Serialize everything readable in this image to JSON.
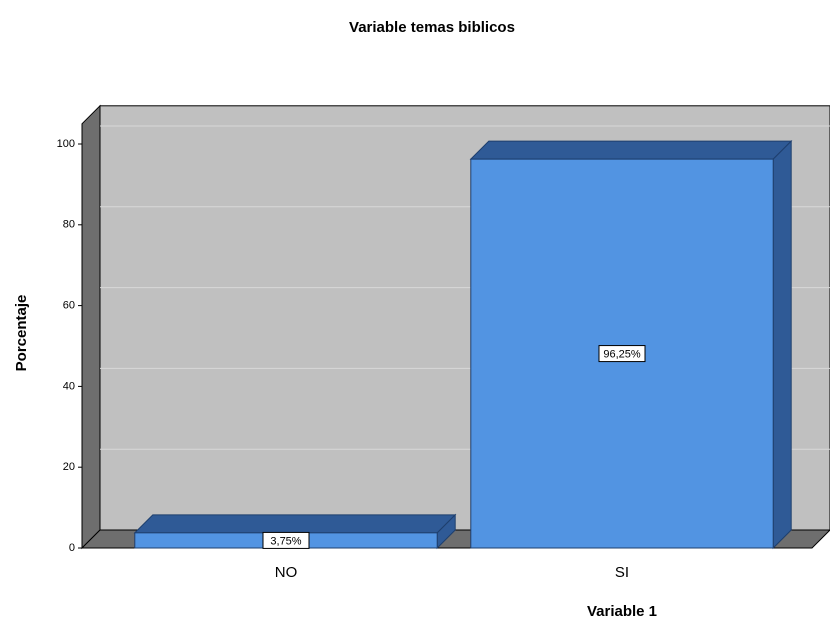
{
  "chart_data": {
    "type": "bar3d",
    "title": "Variable temas biblicos",
    "x_label": "Variable 1",
    "y_label": "Porcentaje",
    "categories": [
      "NO",
      "SI"
    ],
    "values": [
      3.75,
      96.25
    ],
    "value_labels": [
      "3,75%",
      "96,25%"
    ],
    "color": "#5294e2",
    "ylim": [
      0,
      105
    ],
    "yticks": [
      0,
      20,
      40,
      60,
      80,
      100
    ],
    "grid": true
  }
}
